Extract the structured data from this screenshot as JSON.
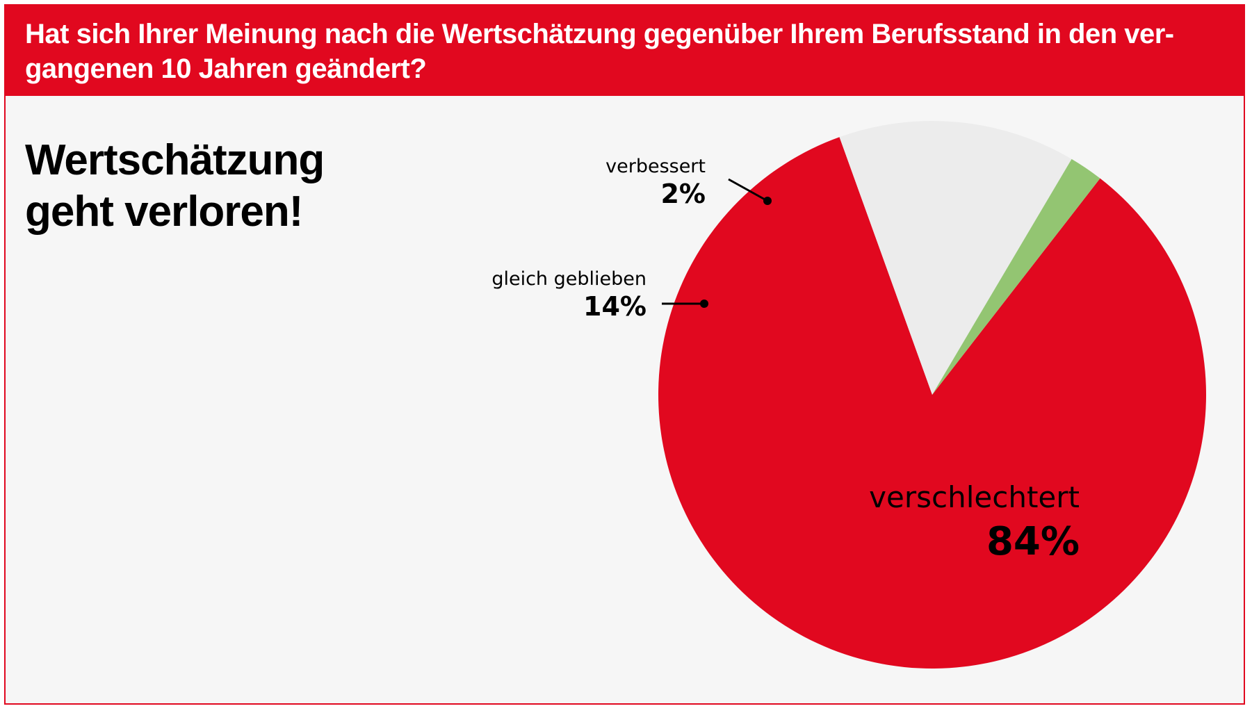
{
  "header": {
    "question": "Hat sich Ihrer Meinung nach die Wertschätzung gegenüber Ihrem Berufsstand in den ver-\ngangenen 10 Jahren geändert?"
  },
  "headline": "Wertschätzung\ngeht verloren!",
  "colors": {
    "brand_red": "#e1081f",
    "panel_background": "#f6f6f6",
    "slice_verschlechtert": "#e1081f",
    "slice_gleich": "#ececec",
    "slice_verbessert": "#93c572"
  },
  "chart_data": {
    "type": "pie",
    "title": "",
    "categories": [
      "verschlechtert",
      "gleich geblieben",
      "verbessert"
    ],
    "values": [
      84,
      14,
      2
    ],
    "labels": [
      {
        "name": "verschlechtert",
        "value_label": "84%"
      },
      {
        "name": "gleich geblieben",
        "value_label": "14%"
      },
      {
        "name": "verbessert",
        "value_label": "2%"
      }
    ],
    "legend": "none"
  }
}
